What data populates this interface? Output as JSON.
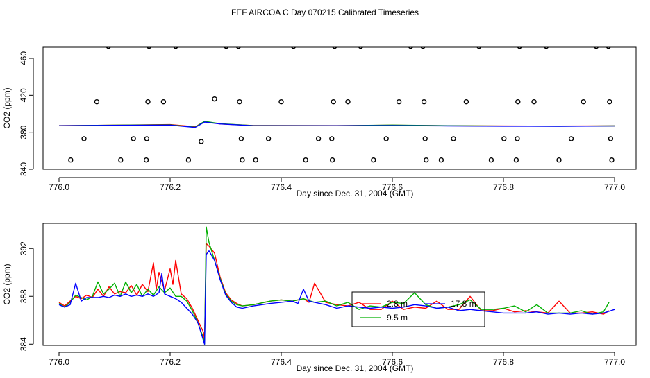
{
  "title": "FEF AIRCOA C  Day 070215  Calibrated Timeseries",
  "chart_data": [
    {
      "type": "scatter",
      "xlabel": "Day since Dec. 31, 2004 (GMT)",
      "ylabel": "CO2 (ppm)",
      "xlim": [
        776.0,
        777.0
      ],
      "ylim": [
        340,
        472
      ],
      "xticks": [
        "776.0",
        "776.2",
        "776.4",
        "776.6",
        "776.8",
        "777.0"
      ],
      "yticks": [
        "340",
        "380",
        "420",
        "460"
      ],
      "grid": false,
      "points": [
        [
          776.021,
          350
        ],
        [
          776.045,
          373
        ],
        [
          776.068,
          413
        ],
        [
          776.089,
          473
        ],
        [
          776.111,
          350
        ],
        [
          776.134,
          373
        ],
        [
          776.157,
          350
        ],
        [
          776.158,
          373
        ],
        [
          776.16,
          413
        ],
        [
          776.162,
          473
        ],
        [
          776.188,
          413
        ],
        [
          776.21,
          473
        ],
        [
          776.233,
          350
        ],
        [
          776.256,
          370
        ],
        [
          776.28,
          416
        ],
        [
          776.301,
          473
        ],
        [
          776.323,
          473
        ],
        [
          776.325,
          413
        ],
        [
          776.328,
          373
        ],
        [
          776.33,
          350
        ],
        [
          776.354,
          350
        ],
        [
          776.377,
          373
        ],
        [
          776.4,
          413
        ],
        [
          776.422,
          473
        ],
        [
          776.444,
          350
        ],
        [
          776.467,
          373
        ],
        [
          776.491,
          373
        ],
        [
          776.492,
          350
        ],
        [
          776.494,
          413
        ],
        [
          776.496,
          473
        ],
        [
          776.52,
          413
        ],
        [
          776.543,
          473
        ],
        [
          776.566,
          350
        ],
        [
          776.589,
          373
        ],
        [
          776.612,
          413
        ],
        [
          776.633,
          473
        ],
        [
          776.655,
          473
        ],
        [
          776.657,
          413
        ],
        [
          776.659,
          373
        ],
        [
          776.661,
          350
        ],
        [
          776.688,
          350
        ],
        [
          776.71,
          373
        ],
        [
          776.733,
          413
        ],
        [
          776.756,
          473
        ],
        [
          776.778,
          350
        ],
        [
          776.801,
          373
        ],
        [
          776.823,
          350
        ],
        [
          776.825,
          373
        ],
        [
          776.826,
          413
        ],
        [
          776.829,
          473
        ],
        [
          776.855,
          413
        ],
        [
          776.877,
          473
        ],
        [
          776.9,
          350
        ],
        [
          776.922,
          373
        ],
        [
          776.944,
          413
        ],
        [
          776.967,
          473
        ],
        [
          776.989,
          473
        ],
        [
          776.991,
          413
        ],
        [
          776.993,
          373
        ],
        [
          776.995,
          350
        ]
      ],
      "series": [
        {
          "color": "#ff0000",
          "x": [
            776.0,
            776.1,
            776.2,
            776.245,
            776.262,
            776.29,
            776.35,
            776.5,
            776.6,
            776.7,
            776.8,
            776.9,
            777.0
          ],
          "values": [
            387.2,
            387.6,
            388.3,
            386.0,
            391.5,
            389.0,
            387.3,
            387.2,
            387.6,
            387.0,
            386.8,
            386.7,
            386.9
          ]
        },
        {
          "color": "#00b000",
          "x": [
            776.0,
            776.1,
            776.2,
            776.245,
            776.262,
            776.29,
            776.35,
            776.5,
            776.6,
            776.7,
            776.8,
            776.9,
            777.0
          ],
          "values": [
            387.1,
            387.7,
            388.0,
            385.5,
            391.8,
            389.3,
            387.2,
            387.1,
            387.8,
            387.1,
            386.7,
            386.6,
            386.9
          ]
        },
        {
          "color": "#0000ff",
          "x": [
            776.0,
            776.1,
            776.2,
            776.245,
            776.262,
            776.29,
            776.35,
            776.5,
            776.6,
            776.7,
            776.8,
            776.9,
            777.0
          ],
          "values": [
            387.0,
            387.5,
            387.8,
            385.2,
            391.0,
            389.0,
            387.0,
            387.0,
            387.2,
            386.9,
            386.6,
            386.5,
            386.8
          ]
        }
      ]
    },
    {
      "type": "line",
      "xlabel": "Day since Dec. 31, 2004 (GMT)",
      "ylabel": "CO2 (ppm)",
      "xlim": [
        776.0,
        777.0
      ],
      "ylim": [
        383.9,
        394.1
      ],
      "xticks": [
        "776.0",
        "776.2",
        "776.4",
        "776.6",
        "776.8",
        "777.0"
      ],
      "yticks": [
        "384",
        "388",
        "392"
      ],
      "grid": false,
      "legend": {
        "placement": "bottom-center",
        "entries": [
          {
            "label": "2.8 m",
            "color": "#ff0000"
          },
          {
            "label": "9.5 m",
            "color": "#00b000"
          },
          {
            "label": "17.8 m",
            "color": "#0000ff"
          }
        ]
      },
      "series": [
        {
          "name": "2.8 m",
          "color": "#ff0000",
          "x": [
            776.0,
            776.01,
            776.02,
            776.03,
            776.04,
            776.05,
            776.06,
            776.07,
            776.08,
            776.09,
            776.1,
            776.11,
            776.12,
            776.13,
            776.14,
            776.15,
            776.16,
            776.17,
            776.175,
            776.18,
            776.19,
            776.2,
            776.205,
            776.21,
            776.22,
            776.23,
            776.24,
            776.25,
            776.26,
            776.262,
            776.265,
            776.27,
            776.28,
            776.29,
            776.3,
            776.31,
            776.32,
            776.33,
            776.35,
            776.38,
            776.4,
            776.42,
            776.44,
            776.45,
            776.46,
            776.48,
            776.5,
            776.52,
            776.54,
            776.56,
            776.58,
            776.6,
            776.62,
            776.64,
            776.66,
            776.68,
            776.7,
            776.72,
            776.74,
            776.76,
            776.78,
            776.8,
            776.82,
            776.84,
            776.86,
            776.88,
            776.9,
            776.92,
            776.94,
            776.96,
            776.98,
            776.99
          ],
          "values": [
            387.5,
            387.2,
            387.6,
            388.0,
            387.8,
            388.1,
            387.9,
            388.6,
            388.0,
            388.8,
            388.2,
            388.4,
            388.3,
            388.9,
            388.1,
            389.0,
            388.4,
            390.8,
            388.6,
            390.0,
            388.5,
            390.3,
            389.0,
            391.0,
            388.2,
            387.8,
            387.0,
            386.0,
            385.0,
            384.3,
            392.4,
            392.2,
            391.6,
            389.6,
            388.3,
            387.7,
            387.4,
            387.2,
            387.3,
            387.6,
            387.7,
            387.6,
            387.8,
            387.5,
            389.1,
            387.5,
            387.3,
            387.2,
            387.5,
            386.9,
            386.9,
            387.6,
            386.9,
            387.1,
            387.0,
            387.6,
            386.9,
            386.9,
            388.0,
            386.8,
            386.8,
            387.0,
            386.7,
            386.8,
            386.7,
            386.6,
            387.6,
            386.6,
            386.6,
            386.7,
            386.5,
            386.8
          ]
        },
        {
          "name": "9.5 m",
          "color": "#00b000",
          "x": [
            776.0,
            776.01,
            776.02,
            776.03,
            776.04,
            776.05,
            776.06,
            776.07,
            776.08,
            776.09,
            776.1,
            776.11,
            776.12,
            776.13,
            776.14,
            776.15,
            776.16,
            776.17,
            776.18,
            776.19,
            776.2,
            776.21,
            776.22,
            776.23,
            776.24,
            776.25,
            776.26,
            776.262,
            776.265,
            776.27,
            776.28,
            776.29,
            776.3,
            776.31,
            776.32,
            776.33,
            776.35,
            776.38,
            776.4,
            776.42,
            776.44,
            776.46,
            776.48,
            776.5,
            776.52,
            776.54,
            776.56,
            776.58,
            776.6,
            776.62,
            776.64,
            776.66,
            776.68,
            776.7,
            776.72,
            776.74,
            776.76,
            776.78,
            776.8,
            776.82,
            776.84,
            776.86,
            776.88,
            776.9,
            776.92,
            776.94,
            776.96,
            776.98,
            776.99
          ],
          "values": [
            387.4,
            387.1,
            387.5,
            388.1,
            387.9,
            387.7,
            388.0,
            389.2,
            388.2,
            388.6,
            389.1,
            388.0,
            389.2,
            388.3,
            389.0,
            388.0,
            388.6,
            388.1,
            388.8,
            388.3,
            388.7,
            388.0,
            388.0,
            387.6,
            386.8,
            385.8,
            384.5,
            384.0,
            393.8,
            392.5,
            391.0,
            389.5,
            388.2,
            387.6,
            387.3,
            387.2,
            387.3,
            387.6,
            387.7,
            387.6,
            387.8,
            387.5,
            387.6,
            387.2,
            387.5,
            386.9,
            387.2,
            387.1,
            387.5,
            387.4,
            388.3,
            387.3,
            387.0,
            387.1,
            387.3,
            387.7,
            386.9,
            386.9,
            387.0,
            387.2,
            386.7,
            387.3,
            386.6,
            386.6,
            386.6,
            386.8,
            386.5,
            386.7,
            387.5
          ]
        },
        {
          "name": "17.8 m",
          "color": "#0000ff",
          "x": [
            776.0,
            776.01,
            776.02,
            776.03,
            776.04,
            776.05,
            776.06,
            776.07,
            776.08,
            776.09,
            776.1,
            776.11,
            776.12,
            776.13,
            776.14,
            776.15,
            776.16,
            776.17,
            776.18,
            776.185,
            776.19,
            776.2,
            776.21,
            776.22,
            776.23,
            776.24,
            776.25,
            776.26,
            776.262,
            776.265,
            776.27,
            776.28,
            776.29,
            776.3,
            776.31,
            776.32,
            776.33,
            776.35,
            776.38,
            776.4,
            776.42,
            776.43,
            776.44,
            776.45,
            776.46,
            776.48,
            776.5,
            776.52,
            776.54,
            776.56,
            776.58,
            776.6,
            776.62,
            776.64,
            776.66,
            776.68,
            776.7,
            776.72,
            776.74,
            776.76,
            776.78,
            776.8,
            776.82,
            776.84,
            776.86,
            776.88,
            776.9,
            776.92,
            776.94,
            776.96,
            776.98,
            777.0
          ],
          "values": [
            387.3,
            387.1,
            387.3,
            389.1,
            387.6,
            387.9,
            387.9,
            387.9,
            388.0,
            387.9,
            388.1,
            388.0,
            388.2,
            388.0,
            388.1,
            388.0,
            388.2,
            388.0,
            388.3,
            389.9,
            388.2,
            388.0,
            387.8,
            387.5,
            387.0,
            386.5,
            385.8,
            384.3,
            384.0,
            391.5,
            391.8,
            391.0,
            389.4,
            388.1,
            387.5,
            387.1,
            387.0,
            387.2,
            387.4,
            387.5,
            387.6,
            387.4,
            388.6,
            387.6,
            387.5,
            387.3,
            387.0,
            387.2,
            387.1,
            387.0,
            387.1,
            387.0,
            387.1,
            387.3,
            387.2,
            387.0,
            387.1,
            386.8,
            386.9,
            386.8,
            386.7,
            386.6,
            386.6,
            386.6,
            386.7,
            386.5,
            386.6,
            386.5,
            386.6,
            386.5,
            386.6,
            386.9
          ]
        }
      ]
    }
  ]
}
